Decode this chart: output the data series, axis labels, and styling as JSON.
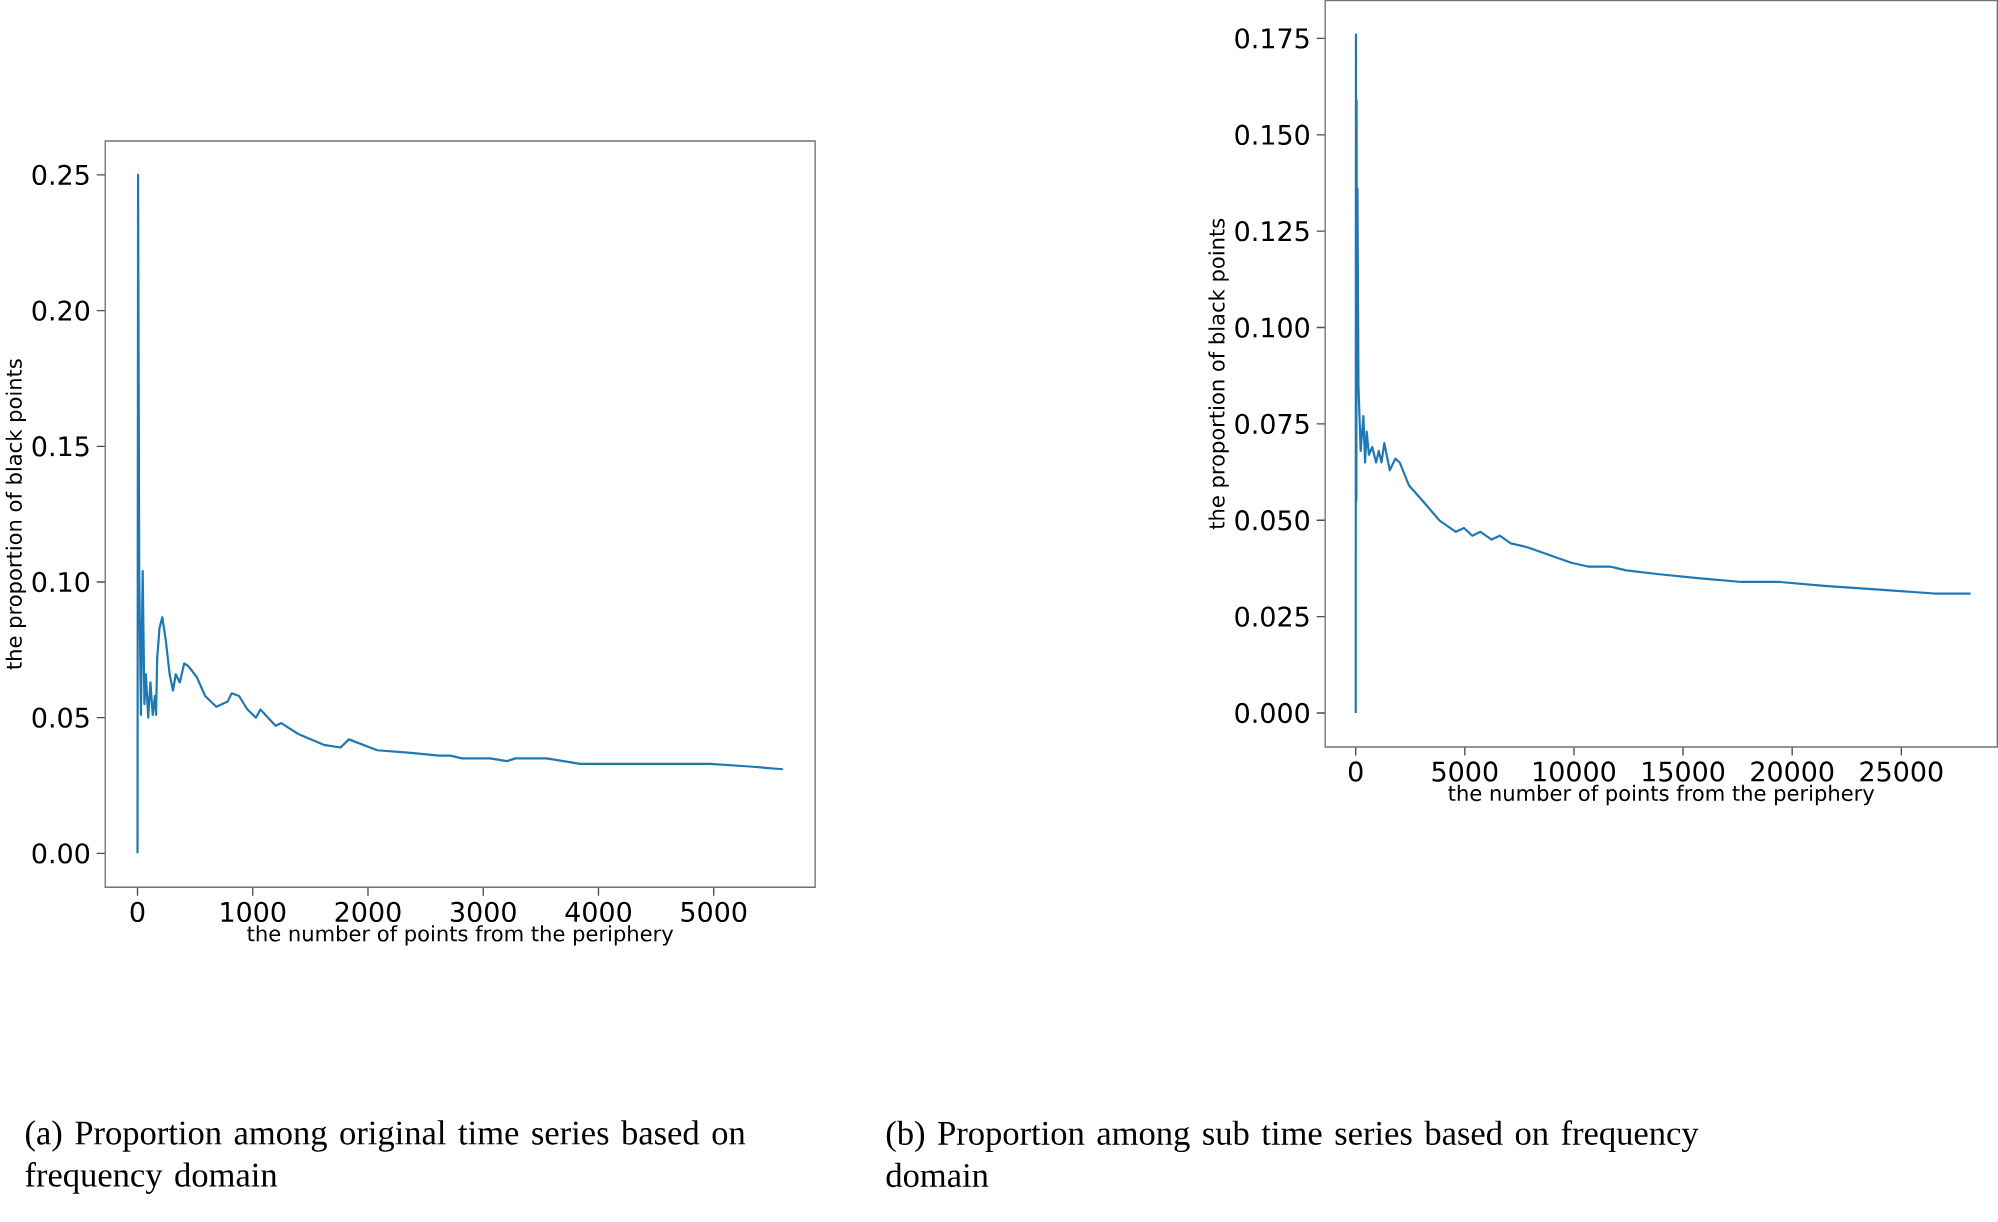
{
  "chart_data": [
    {
      "type": "line",
      "title": "(a) Proportion among original time series based on frequency domain",
      "xlabel": "the number of points from the periphery",
      "ylabel": "the proportion of black points",
      "color": "#1f77b4",
      "x": [
        0,
        5,
        15,
        30,
        45,
        60,
        73,
        93,
        112,
        132,
        151,
        161,
        171,
        191,
        215,
        244,
        279,
        308,
        332,
        367,
        405,
        441,
        514,
        587,
        684,
        783,
        817,
        881,
        954,
        1028,
        1066,
        1198,
        1248,
        1395,
        1615,
        1762,
        1835,
        2080,
        2373,
        2618,
        2716,
        2814,
        3059,
        3206,
        3279,
        3548,
        3841,
        4185,
        4527,
        4968,
        5310,
        5600
      ],
      "values": [
        0,
        0.25,
        0.104,
        0.051,
        0.104,
        0.055,
        0.066,
        0.05,
        0.063,
        0.051,
        0.058,
        0.051,
        0.072,
        0.083,
        0.087,
        0.079,
        0.066,
        0.06,
        0.066,
        0.063,
        0.07,
        0.069,
        0.065,
        0.058,
        0.054,
        0.056,
        0.059,
        0.058,
        0.053,
        0.05,
        0.053,
        0.047,
        0.048,
        0.044,
        0.04,
        0.039,
        0.042,
        0.038,
        0.037,
        0.036,
        0.036,
        0.035,
        0.035,
        0.034,
        0.035,
        0.035,
        0.033,
        0.033,
        0.033,
        0.033,
        0.032,
        0.031
      ],
      "xlim": [
        -280,
        5880
      ],
      "ylim": [
        -0.0125,
        0.2625
      ],
      "xticks": [
        0,
        1000,
        2000,
        3000,
        4000,
        5000
      ],
      "yticks": [
        {
          "value": 0,
          "label": "0.00"
        },
        {
          "value": 0.05,
          "label": "0.05"
        },
        {
          "value": 0.1,
          "label": "0.10"
        },
        {
          "value": 0.15,
          "label": "0.15"
        },
        {
          "value": 0.2,
          "label": "0.20"
        },
        {
          "value": 0.25,
          "label": "0.25"
        }
      ]
    },
    {
      "type": "line",
      "title": "(b) Proportion among sub time series based on frequency domain",
      "xlabel": "the number of points from the periphery",
      "ylabel": "the proportion of black points",
      "color": "#1f77b4",
      "x": [
        0,
        10,
        30,
        40,
        50,
        80,
        125,
        227,
        353,
        429,
        504,
        605,
        756,
        933,
        1058,
        1184,
        1310,
        1562,
        1814,
        2016,
        2444,
        3074,
        3830,
        4586,
        4964,
        5342,
        5720,
        6224,
        6602,
        7106,
        7862,
        8869,
        9877,
        10637,
        11642,
        12398,
        13910,
        15672,
        17690,
        19452,
        21470,
        23988,
        26512,
        28175
      ],
      "values": [
        0,
        0.176,
        0.055,
        0.159,
        0.112,
        0.136,
        0.085,
        0.068,
        0.077,
        0.065,
        0.073,
        0.067,
        0.069,
        0.065,
        0.068,
        0.065,
        0.07,
        0.063,
        0.066,
        0.065,
        0.059,
        0.055,
        0.05,
        0.047,
        0.048,
        0.046,
        0.047,
        0.045,
        0.046,
        0.044,
        0.043,
        0.041,
        0.039,
        0.038,
        0.038,
        0.037,
        0.036,
        0.035,
        0.034,
        0.034,
        0.033,
        0.032,
        0.031,
        0.031
      ],
      "xlim": [
        -1400,
        29400
      ],
      "ylim": [
        -0.0088,
        0.1848
      ],
      "xticks": [
        0,
        5000,
        10000,
        15000,
        20000,
        25000
      ],
      "yticks": [
        {
          "value": 0,
          "label": "0.000"
        },
        {
          "value": 0.025,
          "label": "0.025"
        },
        {
          "value": 0.05,
          "label": "0.050"
        },
        {
          "value": 0.075,
          "label": "0.075"
        },
        {
          "value": 0.1,
          "label": "0.100"
        },
        {
          "value": 0.125,
          "label": "0.125"
        },
        {
          "value": 0.15,
          "label": "0.150"
        },
        {
          "value": 0.175,
          "label": "0.175"
        }
      ]
    }
  ]
}
